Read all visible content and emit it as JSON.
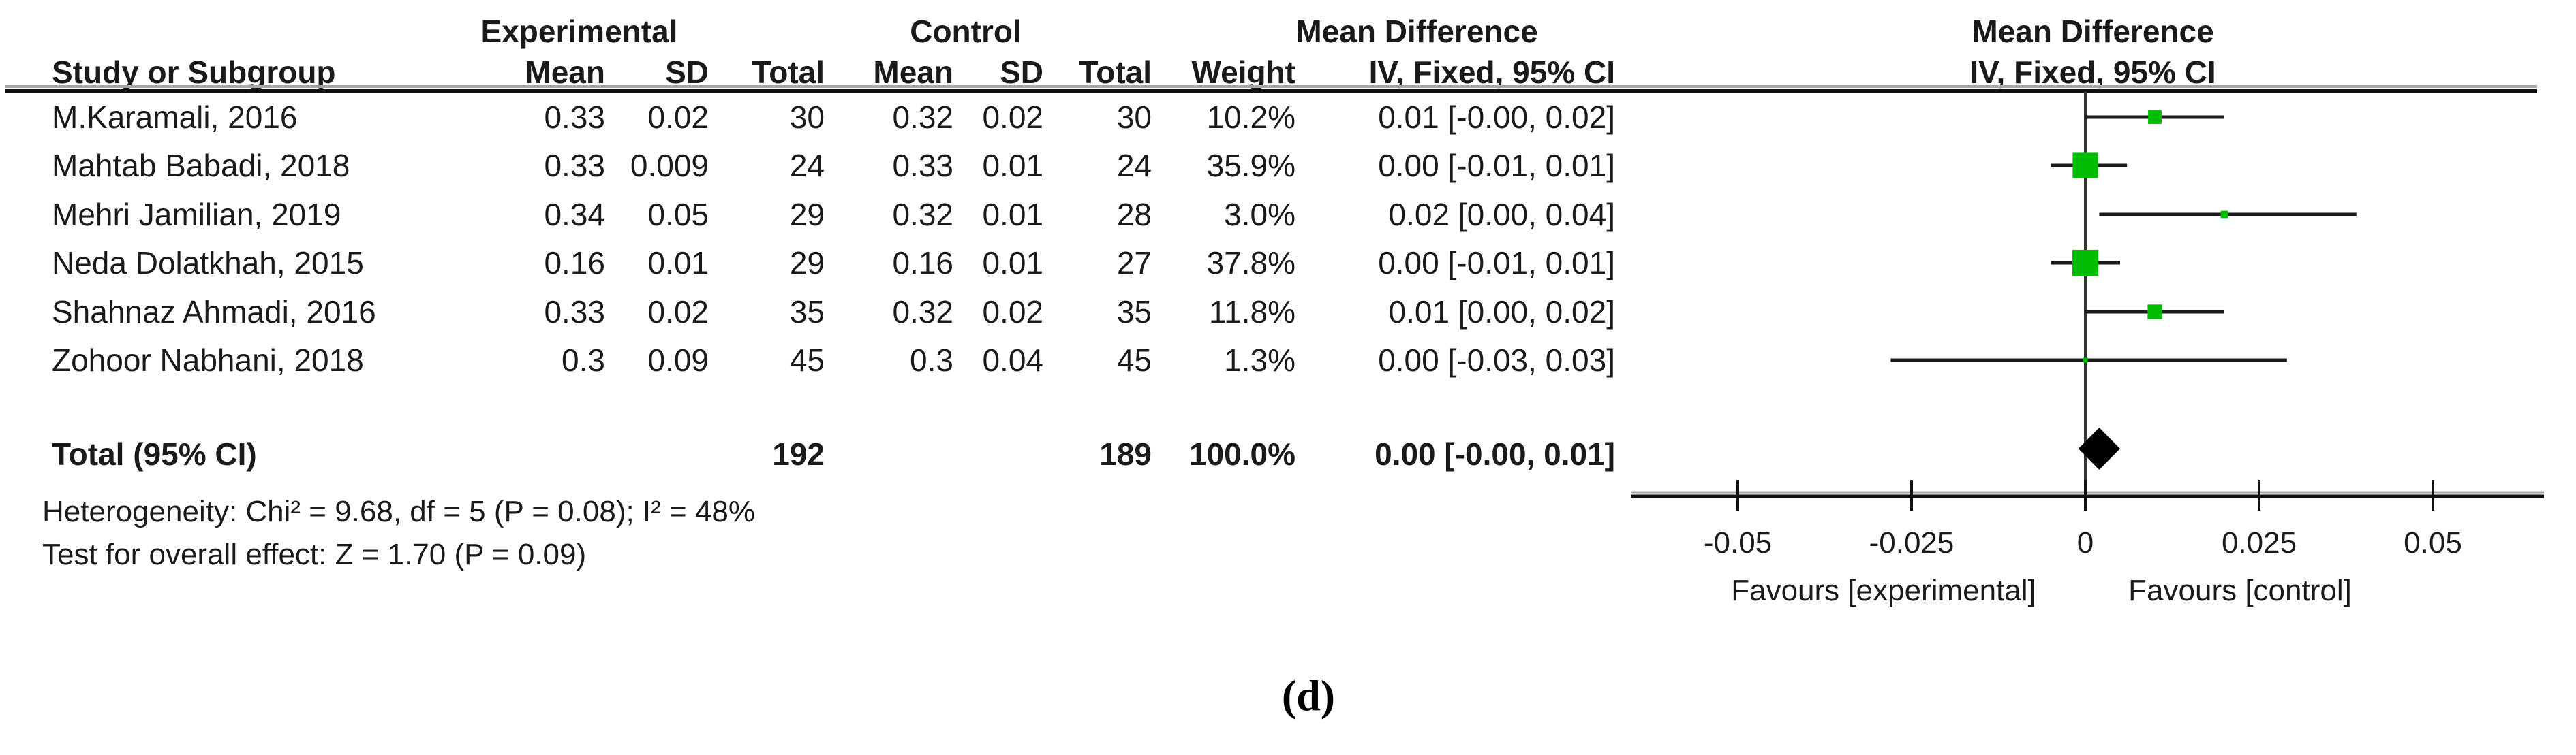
{
  "header": {
    "experimental": "Experimental",
    "control": "Control",
    "mean_difference_table": "Mean Difference",
    "mean_difference_plot": "Mean Difference",
    "study": "Study or Subgroup",
    "mean1": "Mean",
    "sd1": "SD",
    "total1": "Total",
    "mean2": "Mean",
    "sd2": "SD",
    "total2": "Total",
    "weight": "Weight",
    "iv_fixed_table": "IV, Fixed, 95% CI",
    "iv_fixed_plot": "IV, Fixed, 95% CI"
  },
  "rows": [
    {
      "study": "M.Karamali, 2016",
      "mean1": "0.33",
      "sd1": "0.02",
      "total1": "30",
      "mean2": "0.32",
      "sd2": "0.02",
      "total2": "30",
      "weight": "10.2%",
      "ci": "0.01 [-0.00, 0.02]"
    },
    {
      "study": "Mahtab Babadi, 2018",
      "mean1": "0.33",
      "sd1": "0.009",
      "total1": "24",
      "mean2": "0.33",
      "sd2": "0.01",
      "total2": "24",
      "weight": "35.9%",
      "ci": "0.00 [-0.01, 0.01]"
    },
    {
      "study": "Mehri Jamilian, 2019",
      "mean1": "0.34",
      "sd1": "0.05",
      "total1": "29",
      "mean2": "0.32",
      "sd2": "0.01",
      "total2": "28",
      "weight": "3.0%",
      "ci": "0.02 [0.00, 0.04]"
    },
    {
      "study": "Neda Dolatkhah, 2015",
      "mean1": "0.16",
      "sd1": "0.01",
      "total1": "29",
      "mean2": "0.16",
      "sd2": "0.01",
      "total2": "27",
      "weight": "37.8%",
      "ci": "0.00 [-0.01, 0.01]"
    },
    {
      "study": "Shahnaz Ahmadi, 2016",
      "mean1": "0.33",
      "sd1": "0.02",
      "total1": "35",
      "mean2": "0.32",
      "sd2": "0.02",
      "total2": "35",
      "weight": "11.8%",
      "ci": "0.01 [0.00, 0.02]"
    },
    {
      "study": "Zohoor Nabhani, 2018",
      "mean1": "0.3",
      "sd1": "0.09",
      "total1": "45",
      "mean2": "0.3",
      "sd2": "0.04",
      "total2": "45",
      "weight": "1.3%",
      "ci": "0.00 [-0.03, 0.03]"
    }
  ],
  "total_row": {
    "label": "Total (95% CI)",
    "total1": "192",
    "total2": "189",
    "weight": "100.0%",
    "ci": "0.00 [-0.00, 0.01]"
  },
  "footer": {
    "heterogeneity": "Heterogeneity: Chi² = 9.68, df = 5 (P = 0.08); I² = 48%",
    "overall_effect": "Test for overall effect: Z = 1.70 (P = 0.09)"
  },
  "plot": {
    "favours_left": "Favours [experimental]",
    "favours_right": "Favours [control]"
  },
  "caption": "(d)",
  "colors": {
    "marker_green": "#00bd00",
    "line": "#1a1a1a",
    "axis_shadow": "#a6a6a6"
  },
  "chart_data": {
    "type": "forest",
    "effect_measure": "Mean Difference",
    "model": "IV, Fixed, 95% CI",
    "studies": [
      {
        "name": "M.Karamali, 2016",
        "md": 0.01,
        "ci": [
          0.0,
          0.02
        ],
        "weight": 10.2
      },
      {
        "name": "Mahtab Babadi, 2018",
        "md": 0.0,
        "ci": [
          -0.005,
          0.006
        ],
        "weight": 35.9
      },
      {
        "name": "Mehri Jamilian, 2019",
        "md": 0.02,
        "ci": [
          0.002,
          0.039
        ],
        "weight": 3.0
      },
      {
        "name": "Neda Dolatkhah, 2015",
        "md": 0.0,
        "ci": [
          -0.005,
          0.005
        ],
        "weight": 37.8
      },
      {
        "name": "Shahnaz Ahmadi, 2016",
        "md": 0.01,
        "ci": [
          0.0,
          0.02
        ],
        "weight": 11.8
      },
      {
        "name": "Zohoor Nabhani, 2018",
        "md": 0.0,
        "ci": [
          -0.028,
          0.029
        ],
        "weight": 1.3
      }
    ],
    "total": {
      "name": "Total (95% CI)",
      "md": 0.002,
      "ci": [
        -0.001,
        0.005
      ]
    },
    "axis": {
      "ticks": [
        -0.05,
        -0.025,
        0,
        0.025,
        0.05
      ],
      "tick_labels": [
        "-0.05",
        "-0.025",
        "0",
        "0.025",
        "0.05"
      ],
      "xlim": [
        -0.066,
        0.066
      ]
    },
    "heterogeneity": {
      "chi2": 9.68,
      "df": 5,
      "p": 0.08,
      "i2_pct": 48
    },
    "overall_effect": {
      "z": 1.7,
      "p": 0.09
    }
  }
}
